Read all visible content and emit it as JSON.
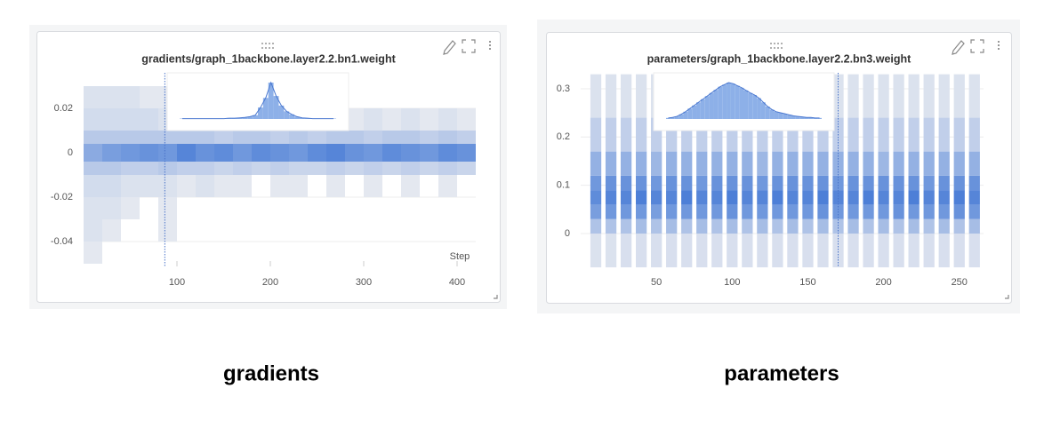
{
  "chart_data": [
    {
      "type": "heatmap-histogram",
      "title": "gradients/graph_1backbone.layer2.2.bn1.weight",
      "x_label": "Step",
      "caption": "gradients",
      "xlim": [
        0,
        420
      ],
      "xticks": [
        100,
        200,
        300,
        400
      ],
      "ylim": [
        -0.0512,
        0.036
      ],
      "yticks": [
        0.02,
        0,
        -0.02,
        -0.04
      ],
      "grid": true,
      "column_gaps": false,
      "color": "#3b73d4",
      "cursor_step": 87,
      "steps": [
        10,
        30,
        50,
        70,
        90,
        110,
        130,
        150,
        170,
        190,
        210,
        230,
        250,
        270,
        290,
        310,
        330,
        350,
        370,
        390,
        410
      ],
      "value_bins": [
        -0.05,
        -0.04,
        -0.03,
        -0.02,
        -0.01,
        -0.004,
        0.004,
        0.01,
        0.02,
        0.03
      ],
      "density": [
        [
          0.05,
          0.1,
          0.1,
          0.15,
          0.3,
          0.55,
          0.3,
          0.15,
          0.1
        ],
        [
          0,
          0.05,
          0.1,
          0.15,
          0.3,
          0.65,
          0.3,
          0.15,
          0.1
        ],
        [
          0,
          0,
          0.05,
          0.1,
          0.25,
          0.7,
          0.3,
          0.15,
          0.1
        ],
        [
          0,
          0,
          0,
          0.1,
          0.25,
          0.75,
          0.3,
          0.15,
          0.05
        ],
        [
          0,
          0.05,
          0.05,
          0.1,
          0.3,
          0.7,
          0.3,
          0.1,
          0.05
        ],
        [
          0,
          0,
          0,
          0.05,
          0.25,
          0.85,
          0.3,
          0.1,
          0
        ],
        [
          0,
          0,
          0,
          0.1,
          0.25,
          0.75,
          0.3,
          0.1,
          0.05
        ],
        [
          0,
          0,
          0,
          0.05,
          0.2,
          0.8,
          0.25,
          0.1,
          0
        ],
        [
          0,
          0,
          0,
          0.05,
          0.25,
          0.7,
          0.3,
          0.1,
          0
        ],
        [
          0,
          0,
          0,
          0,
          0.2,
          0.8,
          0.3,
          0.05,
          0
        ],
        [
          0,
          0,
          0,
          0.05,
          0.25,
          0.75,
          0.25,
          0.1,
          0
        ],
        [
          0,
          0,
          0,
          0.05,
          0.2,
          0.7,
          0.3,
          0.1,
          0
        ],
        [
          0,
          0,
          0,
          0,
          0.2,
          0.8,
          0.25,
          0.05,
          0
        ],
        [
          0,
          0,
          0,
          0.05,
          0.25,
          0.85,
          0.3,
          0.1,
          0
        ],
        [
          0,
          0,
          0,
          0,
          0.2,
          0.75,
          0.3,
          0.05,
          0
        ],
        [
          0,
          0,
          0,
          0.05,
          0.25,
          0.7,
          0.25,
          0.1,
          0
        ],
        [
          0,
          0,
          0,
          0,
          0.2,
          0.8,
          0.3,
          0.05,
          0
        ],
        [
          0,
          0,
          0,
          0.05,
          0.25,
          0.75,
          0.3,
          0.1,
          0
        ],
        [
          0,
          0,
          0,
          0,
          0.2,
          0.7,
          0.25,
          0.05,
          0
        ],
        [
          0,
          0,
          0,
          0.05,
          0.25,
          0.8,
          0.3,
          0.1,
          0
        ],
        [
          0,
          0,
          0,
          0,
          0.2,
          0.75,
          0.25,
          0.05,
          0
        ]
      ],
      "inset": [
        1,
        1,
        1,
        1,
        1,
        1,
        1,
        1,
        1,
        2,
        2,
        3,
        4,
        6,
        10,
        30,
        55,
        95,
        60,
        35,
        20,
        12,
        6,
        3,
        2,
        1,
        1,
        1,
        1,
        1
      ]
    },
    {
      "type": "heatmap-histogram",
      "title": "parameters/graph_1backbone.layer2.2.bn3.weight",
      "caption": "parameters",
      "xlim": [
        0,
        266
      ],
      "xticks": [
        50,
        100,
        150,
        200,
        250
      ],
      "ylim": [
        -0.068,
        0.333
      ],
      "yticks": [
        0,
        0.1,
        0.2,
        0.3
      ],
      "grid": true,
      "column_gaps": true,
      "color": "#3b73d4",
      "cursor_step": 170,
      "steps": [
        10,
        20,
        30,
        40,
        50,
        60,
        70,
        80,
        90,
        100,
        110,
        120,
        130,
        140,
        150,
        160,
        170,
        180,
        190,
        200,
        210,
        220,
        230,
        240,
        250,
        260
      ],
      "value_bins": [
        -0.07,
        0,
        0.03,
        0.06,
        0.09,
        0.12,
        0.17,
        0.24,
        0.33
      ],
      "density": [
        [
          0.1,
          0.35,
          0.65,
          0.8,
          0.7,
          0.5,
          0.25,
          0.1
        ],
        [
          0.1,
          0.35,
          0.7,
          0.85,
          0.75,
          0.5,
          0.25,
          0.1
        ],
        [
          0.12,
          0.35,
          0.7,
          0.85,
          0.75,
          0.5,
          0.25,
          0.1
        ],
        [
          0.12,
          0.4,
          0.7,
          0.9,
          0.75,
          0.5,
          0.25,
          0.1
        ],
        [
          0.12,
          0.35,
          0.65,
          0.85,
          0.7,
          0.45,
          0.25,
          0.1
        ],
        [
          0.12,
          0.4,
          0.7,
          0.85,
          0.75,
          0.5,
          0.25,
          0.1
        ],
        [
          0.12,
          0.35,
          0.7,
          0.9,
          0.75,
          0.5,
          0.25,
          0.1
        ],
        [
          0.12,
          0.4,
          0.7,
          0.85,
          0.7,
          0.5,
          0.25,
          0.1
        ],
        [
          0.12,
          0.35,
          0.7,
          0.85,
          0.75,
          0.5,
          0.25,
          0.1
        ],
        [
          0.12,
          0.4,
          0.75,
          0.9,
          0.75,
          0.5,
          0.25,
          0.1
        ],
        [
          0.12,
          0.35,
          0.7,
          0.85,
          0.75,
          0.5,
          0.25,
          0.1
        ],
        [
          0.12,
          0.4,
          0.7,
          0.85,
          0.7,
          0.45,
          0.25,
          0.1
        ],
        [
          0.12,
          0.35,
          0.7,
          0.9,
          0.75,
          0.5,
          0.25,
          0.1
        ],
        [
          0.12,
          0.4,
          0.7,
          0.85,
          0.75,
          0.5,
          0.25,
          0.1
        ],
        [
          0.12,
          0.35,
          0.7,
          0.85,
          0.75,
          0.5,
          0.25,
          0.1
        ],
        [
          0.12,
          0.4,
          0.75,
          0.9,
          0.75,
          0.5,
          0.25,
          0.1
        ],
        [
          0.12,
          0.35,
          0.7,
          0.85,
          0.7,
          0.5,
          0.25,
          0.1
        ],
        [
          0.12,
          0.4,
          0.7,
          0.85,
          0.75,
          0.5,
          0.25,
          0.1
        ],
        [
          0.12,
          0.35,
          0.7,
          0.9,
          0.75,
          0.5,
          0.25,
          0.1
        ],
        [
          0.12,
          0.4,
          0.7,
          0.85,
          0.75,
          0.45,
          0.25,
          0.1
        ],
        [
          0.12,
          0.35,
          0.75,
          0.85,
          0.75,
          0.5,
          0.25,
          0.1
        ],
        [
          0.12,
          0.4,
          0.7,
          0.9,
          0.75,
          0.5,
          0.25,
          0.1
        ],
        [
          0.12,
          0.35,
          0.7,
          0.85,
          0.7,
          0.5,
          0.25,
          0.1
        ],
        [
          0.12,
          0.4,
          0.7,
          0.85,
          0.75,
          0.5,
          0.25,
          0.1
        ],
        [
          0.12,
          0.35,
          0.75,
          0.9,
          0.75,
          0.5,
          0.25,
          0.1
        ],
        [
          0.12,
          0.4,
          0.7,
          0.85,
          0.75,
          0.5,
          0.25,
          0.1
        ]
      ],
      "inset": [
        2,
        3,
        5,
        9,
        14,
        20,
        26,
        32,
        38,
        44,
        50,
        56,
        62,
        66,
        70,
        68,
        64,
        60,
        55,
        50,
        46,
        40,
        32,
        24,
        18,
        14,
        12,
        10,
        8,
        6,
        5,
        4,
        3,
        3,
        2,
        2
      ]
    }
  ]
}
